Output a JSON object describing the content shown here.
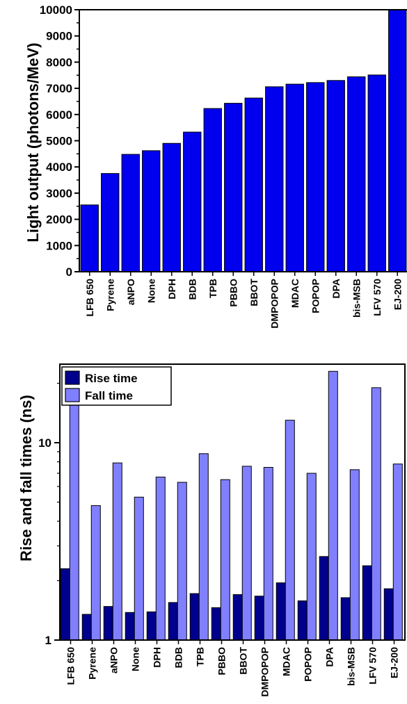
{
  "colors": {
    "light_bar": "#0000ee",
    "rise_bar": "#00008e",
    "fall_bar": "#8080ff",
    "outline": "#000000"
  },
  "chart_data": [
    {
      "type": "bar",
      "ylabel": "Light output (photons/MeV)",
      "ylim": [
        0,
        10000
      ],
      "yticks": [
        0,
        1000,
        2000,
        3000,
        4000,
        5000,
        6000,
        7000,
        8000,
        9000,
        10000
      ],
      "categories": [
        "LFB 650",
        "Pyrene",
        "aNPO",
        "None",
        "DPH",
        "BDB",
        "TPB",
        "PBBO",
        "BBOT",
        "DMPOPOP",
        "MDAC",
        "POPOP",
        "DPA",
        "bis-MSB",
        "LFV 570",
        "EJ-200"
      ],
      "values": [
        2550,
        3750,
        4480,
        4620,
        4900,
        5330,
        6230,
        6430,
        6630,
        7060,
        7160,
        7220,
        7300,
        7440,
        7510,
        10000
      ]
    },
    {
      "type": "bar",
      "ylabel": "Rise and fall times (ns)",
      "yscale": "log",
      "ylim": [
        1,
        25
      ],
      "yticks": [
        1,
        10
      ],
      "ytick_labels": [
        "1",
        "10"
      ],
      "legend_position": "top-left",
      "categories": [
        "LFB 650",
        "Pyrene",
        "aNPO",
        "None",
        "DPH",
        "BDB",
        "TPB",
        "PBBO",
        "BBOT",
        "DMPOPOP",
        "MDAC",
        "POPOP",
        "DPA",
        "bis-MSB",
        "LFV 570",
        "EJ-200"
      ],
      "series": [
        {
          "name": "Rise time",
          "values": [
            2.3,
            1.35,
            1.48,
            1.38,
            1.39,
            1.55,
            1.72,
            1.46,
            1.7,
            1.67,
            1.95,
            1.58,
            2.65,
            1.64,
            2.38,
            1.82
          ]
        },
        {
          "name": "Fall time",
          "values": [
            15.5,
            4.8,
            7.9,
            5.3,
            6.7,
            6.3,
            8.8,
            6.5,
            7.6,
            7.5,
            13.0,
            7.0,
            23.0,
            7.3,
            19.0,
            7.8
          ]
        }
      ]
    }
  ]
}
